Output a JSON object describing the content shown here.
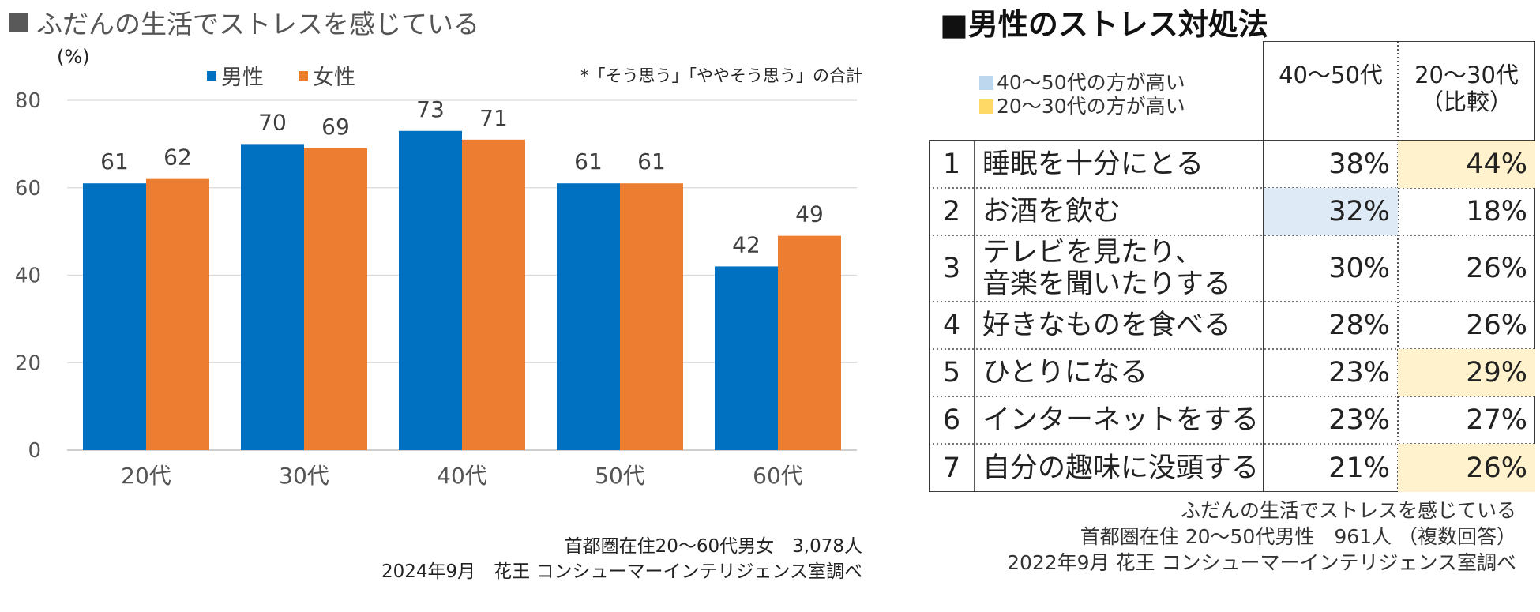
{
  "chart_data": [
    {
      "type": "bar",
      "title": "ふだんの生活でストレスを感じている",
      "ylabel": "(%)",
      "xlabel": "",
      "ylim": [
        0,
        80
      ],
      "yticks": [
        "0",
        "20",
        "40",
        "60",
        "80"
      ],
      "categories": [
        "20代",
        "30代",
        "40代",
        "50代",
        "60代"
      ],
      "series": [
        {
          "name": "男性",
          "color": "#0070C0",
          "values": [
            61,
            70,
            73,
            61,
            42
          ]
        },
        {
          "name": "女性",
          "color": "#ED7D31",
          "values": [
            62,
            69,
            71,
            61,
            49
          ]
        }
      ],
      "legend_position": "top",
      "grid": true,
      "footnote": "*「そう思う」「ややそう思う」の合計",
      "source": [
        "首都圏在住20～60代男女　3,078人",
        "2024年9月　花王 コンシューマーインテリジェンス室調べ"
      ]
    },
    {
      "type": "table",
      "title": "■男性のストレス対処法",
      "legend": [
        {
          "label": "40～50代の方が高い",
          "color": "#BDD7EE"
        },
        {
          "label": "20～30代の方が高い",
          "color": "#FFD966"
        }
      ],
      "columns": [
        "40～50代",
        "20～30代\n（比較）"
      ],
      "rows": [
        {
          "rank": "1",
          "item": "睡眠を十分にとる",
          "v1": "38%",
          "v2": "44%",
          "highlight": "v2"
        },
        {
          "rank": "2",
          "item": "お酒を飲む",
          "v1": "32%",
          "v2": "18%",
          "highlight": "v1"
        },
        {
          "rank": "3",
          "item": "テレビを見たり、\n音楽を聞いたりする",
          "v1": "30%",
          "v2": "26%",
          "highlight": ""
        },
        {
          "rank": "4",
          "item": "好きなものを食べる",
          "v1": "28%",
          "v2": "26%",
          "highlight": ""
        },
        {
          "rank": "5",
          "item": "ひとりになる",
          "v1": "23%",
          "v2": "29%",
          "highlight": "v2"
        },
        {
          "rank": "6",
          "item": "インターネットをする",
          "v1": "23%",
          "v2": "27%",
          "highlight": ""
        },
        {
          "rank": "7",
          "item": "自分の趣味に没頭する",
          "v1": "21%",
          "v2": "26%",
          "highlight": "v2"
        }
      ],
      "source": [
        "ふだんの生活でストレスを感じている",
        "首都圏在住 20～50代男性　961人 （複数回答）",
        "2022年9月 花王 コンシューマーインテリジェンス室調べ"
      ]
    }
  ],
  "colors": {
    "male": "#0070C0",
    "female": "#ED7D31",
    "highlight_older": "#DEEBF7",
    "highlight_younger": "#FFF2CC",
    "legend_older": "#BDD7EE",
    "legend_younger": "#FFD966"
  }
}
